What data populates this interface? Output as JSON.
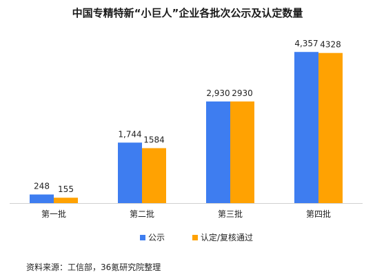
{
  "chart_data": {
    "type": "bar",
    "title": "中国专精特新“小巨人”企业各批次公示及认定数量",
    "categories": [
      "第一批",
      "第二批",
      "第三批",
      "第四批"
    ],
    "series": [
      {
        "name": "公示",
        "values": [
          248,
          1744,
          2930,
          4357
        ],
        "labels": [
          "248",
          "1,744",
          "2,930",
          "4,357"
        ],
        "color": "#3e7df0"
      },
      {
        "name": "认定/复核通过",
        "values": [
          155,
          1584,
          2930,
          4328
        ],
        "labels": [
          "155",
          "1584",
          "2930",
          "4328"
        ],
        "color": "#ffa202"
      }
    ],
    "ylim": [
      0,
      4700
    ],
    "grid": false,
    "legend": "bottom"
  },
  "source": "资料来源：工信部，36氪研究院整理"
}
